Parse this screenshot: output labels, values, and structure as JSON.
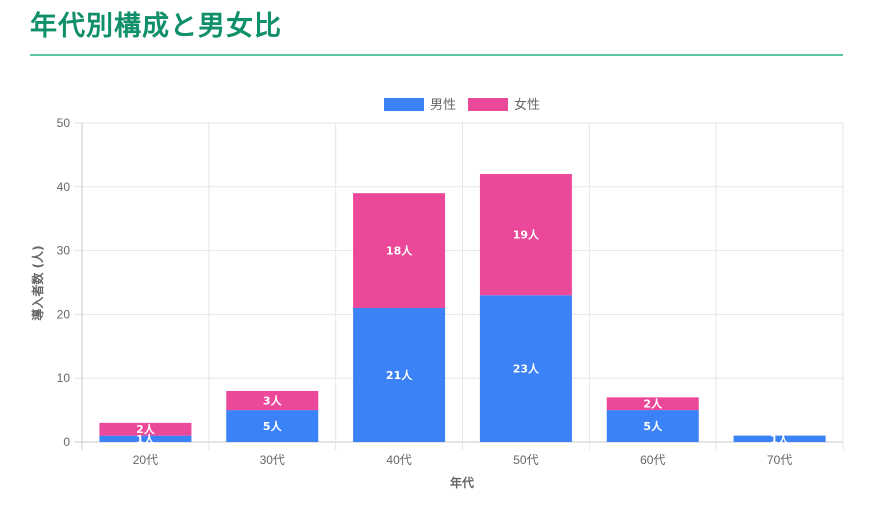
{
  "page": {
    "title": "年代別構成と男女比"
  },
  "chart_data": {
    "type": "bar",
    "stacked": true,
    "categories": [
      "20代",
      "30代",
      "40代",
      "50代",
      "60代",
      "70代"
    ],
    "series": [
      {
        "name": "男性",
        "color": "#3b82f6",
        "values": [
          1,
          5,
          21,
          23,
          5,
          1
        ],
        "labels": [
          "1人",
          "5人",
          "21人",
          "23人",
          "5人",
          "1人"
        ]
      },
      {
        "name": "女性",
        "color": "#ec4899",
        "values": [
          2,
          3,
          18,
          19,
          2,
          0
        ],
        "labels": [
          "2人",
          "3人",
          "18人",
          "19人",
          "2人",
          ""
        ]
      }
    ],
    "title": "",
    "xlabel": "年代",
    "ylabel": "導入者数 (人)",
    "ylim": [
      0,
      50
    ],
    "yticks": [
      "0",
      "10",
      "20",
      "30",
      "40",
      "50"
    ],
    "grid": true,
    "legend": "top-center"
  }
}
